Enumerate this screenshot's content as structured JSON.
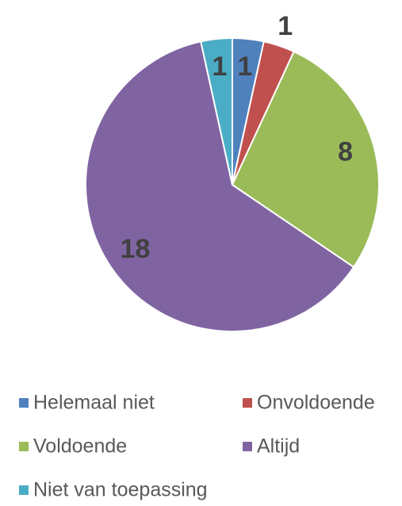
{
  "chart_data": {
    "type": "pie",
    "categories": [
      "Helemaal niet",
      "Onvoldoende",
      "Voldoende",
      "Altijd",
      "Niet van toepassing"
    ],
    "values": [
      1,
      1,
      8,
      18,
      1
    ],
    "colors": [
      "#4f81bd",
      "#c0504d",
      "#9bbb59",
      "#8064a2",
      "#4bacc6"
    ]
  }
}
